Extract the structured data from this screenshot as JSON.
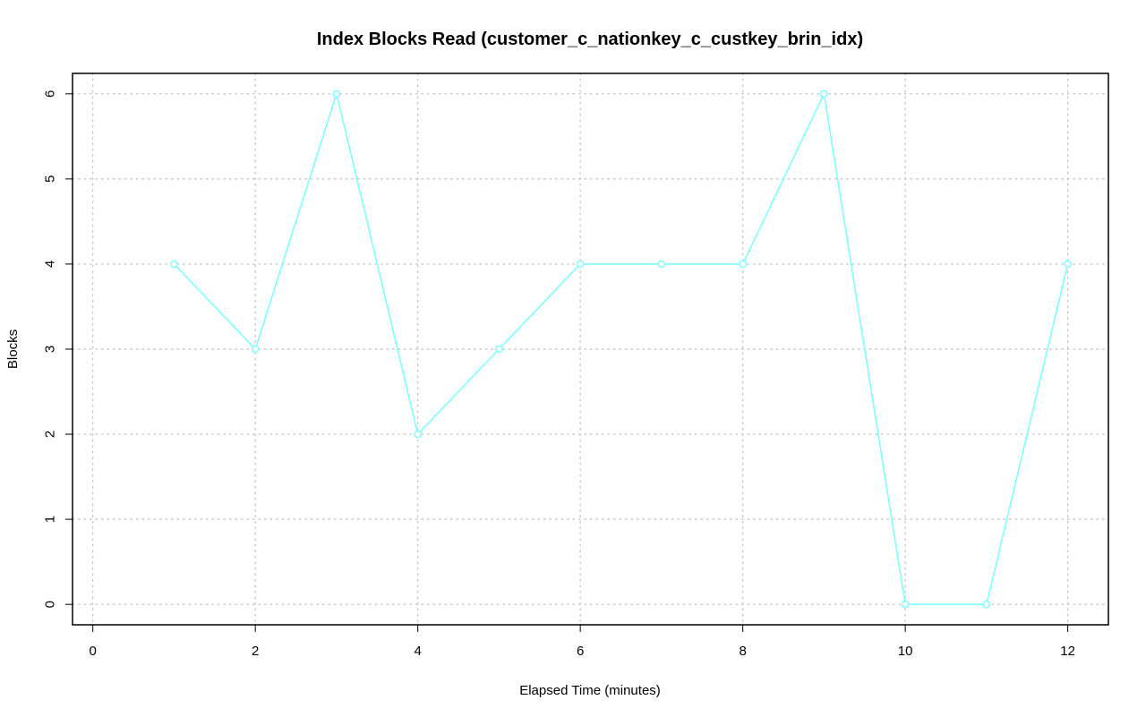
{
  "chart_data": {
    "type": "line",
    "title": "Index Blocks Read (customer_c_nationkey_c_custkey_brin_idx)",
    "xlabel": "Elapsed Time (minutes)",
    "ylabel": "Blocks",
    "xlim": [
      -0.25,
      12.5
    ],
    "ylim": [
      -0.24,
      6.24
    ],
    "x_ticks": [
      0,
      2,
      4,
      6,
      8,
      10,
      12
    ],
    "y_ticks": [
      0,
      1,
      2,
      3,
      4,
      5,
      6
    ],
    "x_grid": [
      0,
      2,
      4,
      6,
      8,
      10,
      12
    ],
    "y_grid": [
      0,
      1,
      2,
      3,
      4,
      5,
      6
    ],
    "grid": true,
    "series": [
      {
        "color": "#7fffff",
        "x": [
          1,
          2,
          3,
          4,
          5,
          6,
          7,
          8,
          9,
          10,
          11,
          12
        ],
        "y": [
          4,
          3,
          6,
          2,
          3,
          4,
          4,
          4,
          6,
          0,
          0,
          4
        ]
      }
    ]
  }
}
